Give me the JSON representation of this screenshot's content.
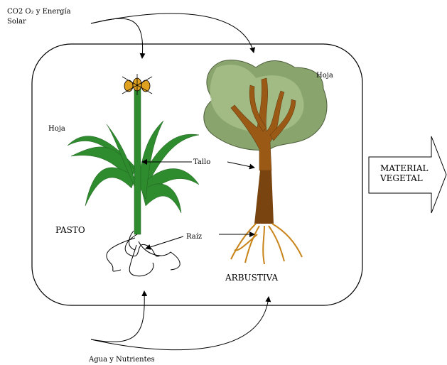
{
  "inputs": {
    "top": [
      "CO2 O₂ y Energía",
      "Solar"
    ],
    "bottom": "Agua y Nutrientes"
  },
  "plants": [
    {
      "name": "PASTO",
      "leaf_label": "Hoja"
    },
    {
      "name": "ARBUSTIVA",
      "leaf_label": "Hoja"
    }
  ],
  "labels": {
    "stem": "Tallo",
    "root": "Raíz"
  },
  "output": [
    "MATERIAL",
    "VEGETAL"
  ]
}
